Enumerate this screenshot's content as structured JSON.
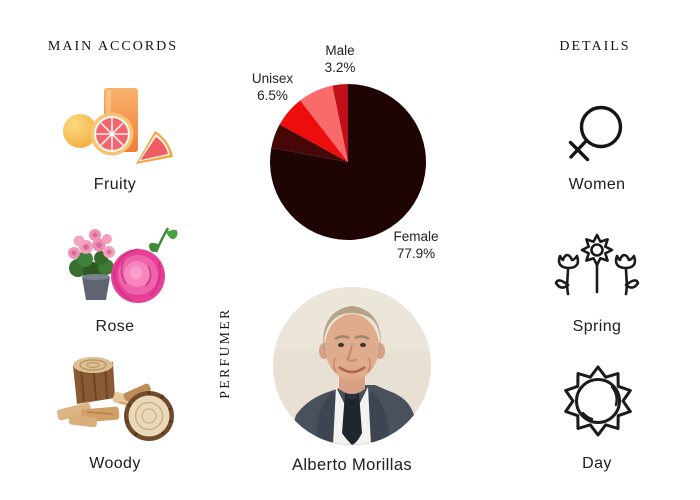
{
  "accords": {
    "heading": "MAIN ACCORDS",
    "items": [
      {
        "label": "Fruity",
        "image": "grapefruit-juice-photo"
      },
      {
        "label": "Rose",
        "image": "pink-roses-photo"
      },
      {
        "label": "Woody",
        "image": "wood-logs-photo"
      }
    ]
  },
  "chart_data": {
    "type": "pie",
    "title": "Gender audience split",
    "legend_position": "none",
    "start_angle_deg": 0,
    "direction": "clockwise",
    "slices": [
      {
        "label": "Female",
        "value": 77.9,
        "color": "#1f0404",
        "labeled_on_chart": true
      },
      {
        "label": "",
        "value": 5.1,
        "color": "#470707",
        "labeled_on_chart": false,
        "estimated": true
      },
      {
        "label": "Unisex",
        "value": 6.5,
        "color": "#ee0d0d",
        "labeled_on_chart": true
      },
      {
        "label": "",
        "value": 7.3,
        "color": "#f96b6b",
        "labeled_on_chart": false,
        "estimated": true
      },
      {
        "label": "Male",
        "value": 3.2,
        "color": "#c21019",
        "labeled_on_chart": true
      }
    ]
  },
  "pie_labels": {
    "male": {
      "line1": "Male",
      "line2": "3.2%"
    },
    "unisex": {
      "line1": "Unisex",
      "line2": "6.5%"
    },
    "female": {
      "line1": "Female",
      "line2": "77.9%"
    }
  },
  "perfumer": {
    "heading": "PERFUMER",
    "name": "Alberto Morillas",
    "photo": "alberto-morillas-portrait"
  },
  "details": {
    "heading": "DETAILS",
    "items": [
      {
        "label": "Women",
        "icon": "female-symbol-icon"
      },
      {
        "label": "Spring",
        "icon": "flowers-icon"
      },
      {
        "label": "Day",
        "icon": "sun-icon"
      }
    ]
  },
  "colors": {
    "background": "#ffffff",
    "text": "#1d1d1d",
    "icon_stroke": "#1b1b1b",
    "pie_female": "#1f0404",
    "pie_more_female": "#470707",
    "pie_unisex": "#ee0d0d",
    "pie_more_male": "#f96b6b",
    "pie_male": "#c21019"
  }
}
